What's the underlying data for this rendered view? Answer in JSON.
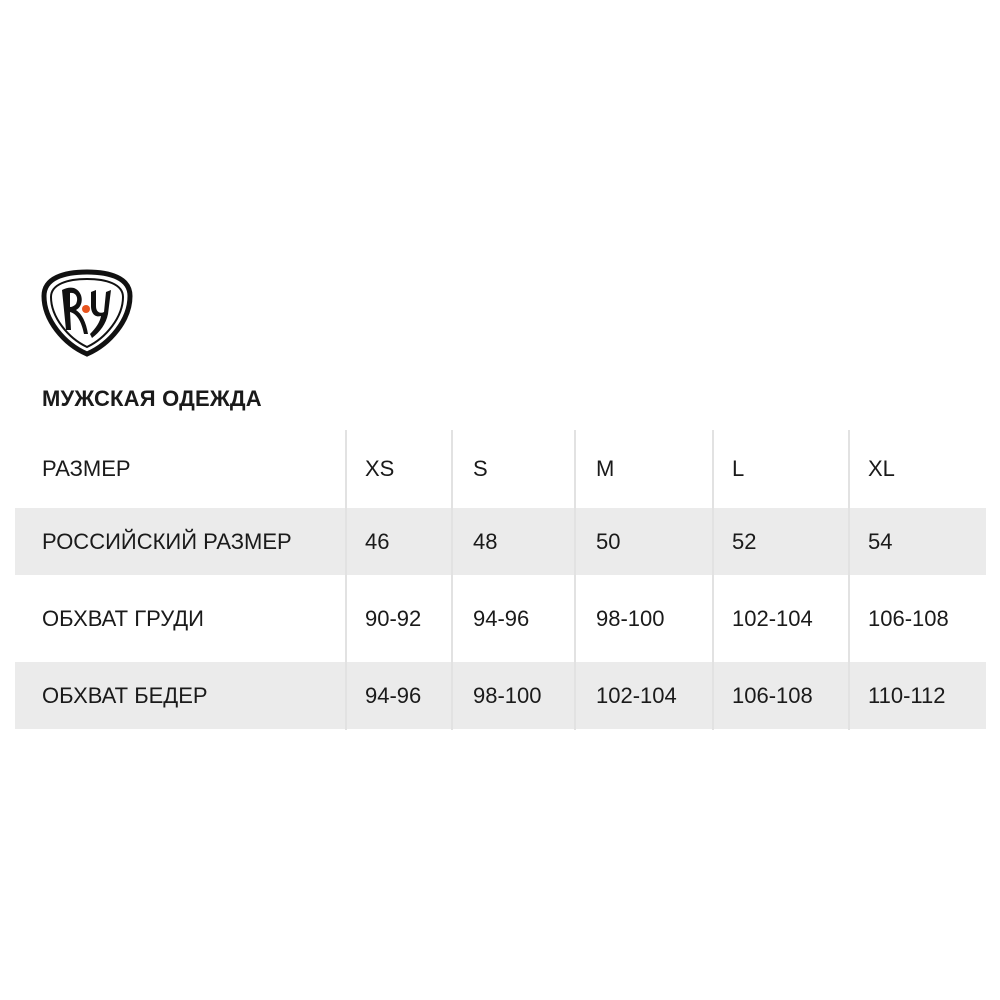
{
  "brand": {
    "logo_text": "RY",
    "accent_color": "#e8541e"
  },
  "title": "МУЖСКАЯ ОДЕЖДА",
  "table": {
    "headers": [
      "РАЗМЕР",
      "XS",
      "S",
      "M",
      "L",
      "XL"
    ],
    "rows": [
      [
        "РОССИЙСКИЙ РАЗМЕР",
        "46",
        "48",
        "50",
        "52",
        "54"
      ],
      [
        "ОБХВАТ ГРУДИ",
        "90-92",
        "94-96",
        "98-100",
        "102-104",
        "106-108"
      ],
      [
        "ОБХВАТ БЕДЕР",
        "94-96",
        "98-100",
        "102-104",
        "106-108",
        "110-112"
      ]
    ],
    "stripe_color": "#ebebeb"
  }
}
